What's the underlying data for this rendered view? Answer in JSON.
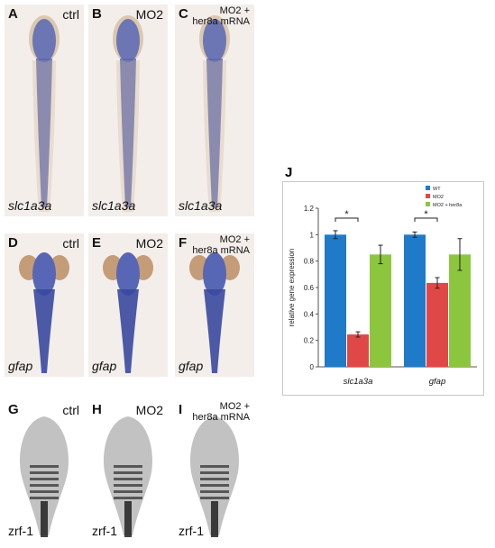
{
  "figure": {
    "panels": [
      {
        "id": "A",
        "letter": "A",
        "condition": [
          "ctrl"
        ],
        "gene": "slc1a3a",
        "stain": "blue",
        "stage": "larva"
      },
      {
        "id": "B",
        "letter": "B",
        "condition": [
          "MO2"
        ],
        "gene": "slc1a3a",
        "stain": "blue",
        "stage": "larva"
      },
      {
        "id": "C",
        "letter": "C",
        "condition": [
          "MO2 +",
          "her8a mRNA"
        ],
        "gene": "slc1a3a",
        "stain": "blue",
        "stage": "larva"
      },
      {
        "id": "D",
        "letter": "D",
        "condition": [
          "ctrl"
        ],
        "gene": "gfap",
        "stain": "blue",
        "stage": "head"
      },
      {
        "id": "E",
        "letter": "E",
        "condition": [
          "MO2"
        ],
        "gene": "gfap",
        "stain": "blue",
        "stage": "head"
      },
      {
        "id": "F",
        "letter": "F",
        "condition": [
          "MO2 +",
          "her8a mRNA"
        ],
        "gene": "gfap",
        "stain": "blue",
        "stage": "head"
      },
      {
        "id": "G",
        "letter": "G",
        "condition": [
          "ctrl"
        ],
        "gene": "zrf-1",
        "stain": "gray",
        "stage": "head"
      },
      {
        "id": "H",
        "letter": "H",
        "condition": [
          "MO2"
        ],
        "gene": "zrf-1",
        "stain": "gray",
        "stage": "head"
      },
      {
        "id": "I",
        "letter": "I",
        "condition": [
          "MO2 +",
          "her8a mRNA"
        ],
        "gene": "zrf-1",
        "stain": "gray",
        "stage": "head"
      }
    ],
    "chart_letter": "J"
  },
  "chart_data": {
    "type": "bar",
    "title": "",
    "xlabel": "",
    "ylabel": "relative gene expression",
    "categories": [
      "slc1a3a",
      "gfap"
    ],
    "series": [
      {
        "name": "WT",
        "color": "#1f7ac9",
        "values": [
          1.0,
          1.0
        ],
        "errors": [
          0.03,
          0.02
        ]
      },
      {
        "name": "MO2",
        "color": "#e04848",
        "values": [
          0.245,
          0.635
        ],
        "errors": [
          0.02,
          0.04
        ]
      },
      {
        "name": "MO2 + her8a",
        "color": "#8cc63f",
        "values": [
          0.85,
          0.85
        ],
        "errors": [
          0.07,
          0.12
        ]
      }
    ],
    "ylim": [
      0,
      1.2
    ],
    "yticks": [
      "0",
      "0.2",
      "0.4",
      "0.6",
      "0.8",
      "1",
      "1.2"
    ],
    "significance": [
      {
        "category": "slc1a3a",
        "label": "*"
      },
      {
        "category": "gfap",
        "label": "*"
      }
    ],
    "legend_position": "top-right",
    "grid": false
  }
}
